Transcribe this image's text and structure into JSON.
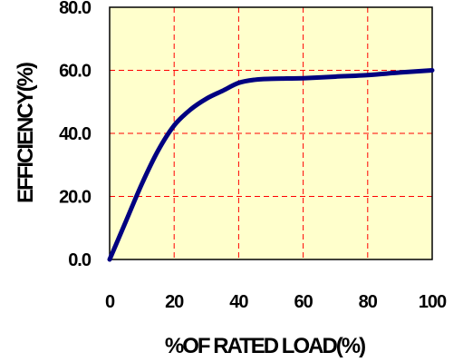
{
  "chart_data": {
    "type": "line",
    "title": "",
    "xlabel": "%OF RATED LOAD(%)",
    "ylabel": "EFFICIENCY(%)",
    "xlim": [
      0,
      100
    ],
    "ylim": [
      0,
      80
    ],
    "x_ticks": [
      "0",
      "20",
      "40",
      "60",
      "80",
      "100"
    ],
    "y_ticks": [
      "0.0",
      "20.0",
      "40.0",
      "60.0",
      "80.0"
    ],
    "grid": true,
    "grid_style": "dashed",
    "legend": "none",
    "colors": {
      "plot_background": "#FFFFCC",
      "grid": "#FF0000",
      "line": "#000080",
      "frame": "#000000"
    },
    "series": [
      {
        "x": [
          0,
          5,
          10,
          15,
          20,
          25,
          30,
          35,
          40,
          45,
          50,
          55,
          60,
          70,
          80,
          90,
          100
        ],
        "y": [
          0,
          12.0,
          24.0,
          34.5,
          42.5,
          47.5,
          51.0,
          53.5,
          56.0,
          57.0,
          57.3,
          57.4,
          57.5,
          58.0,
          58.5,
          59.3,
          60.0
        ]
      }
    ]
  }
}
